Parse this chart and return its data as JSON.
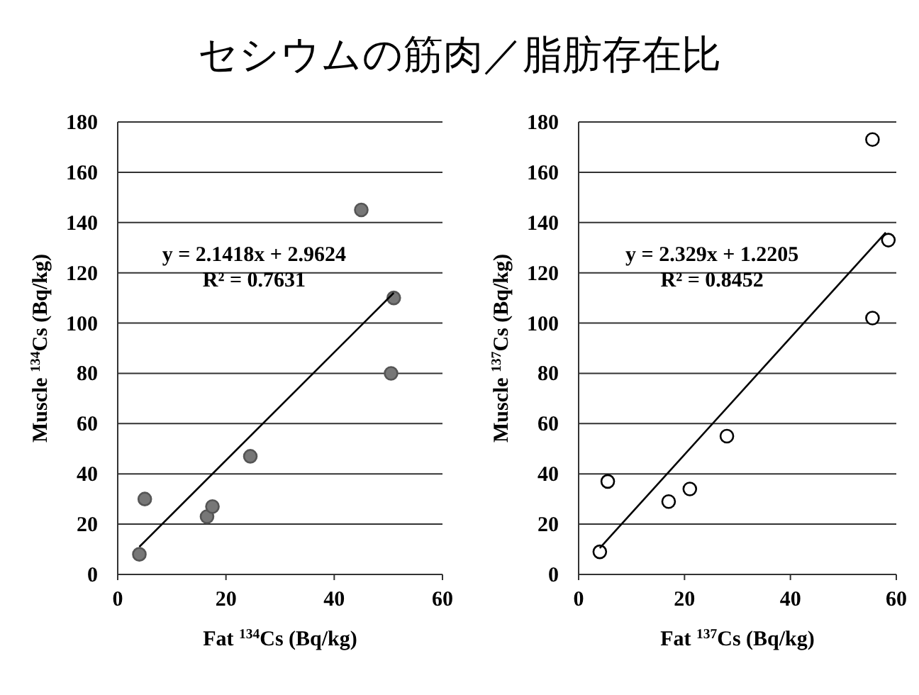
{
  "chart_data": [
    {
      "type": "scatter",
      "title": "セシウムの筋肉／脂肪存在比",
      "xlabel": "Fat $^{134}$Cs (Bq/kg)",
      "ylabel": "Muscle $^{134}$Cs (Bq/kg)",
      "xlim": [
        0,
        60
      ],
      "xticks": [
        0,
        20,
        40,
        60
      ],
      "ylim": [
        0,
        180
      ],
      "yticks": [
        0,
        20,
        40,
        60,
        80,
        100,
        120,
        140,
        160,
        180
      ],
      "grid": "y",
      "annotations": [
        "y = 2.1418x + 2.9624",
        "R² = 0.7631"
      ],
      "series": [
        {
          "marker": "circle",
          "color": "#777777",
          "x": [
            4,
            5,
            16.5,
            17.5,
            24.5,
            45,
            50.5,
            51
          ],
          "values": [
            8,
            30,
            23,
            27,
            47,
            145,
            80,
            110
          ]
        },
        {
          "type": "line",
          "color": "#000000",
          "x": [
            4,
            51
          ],
          "values": [
            11,
            112
          ]
        }
      ]
    },
    {
      "type": "scatter",
      "xlabel": "Fat $^{137}$Cs (Bq/kg)",
      "ylabel": "Muscle $^{137}$Cs (Bq/kg)",
      "xlim": [
        0,
        60
      ],
      "xticks": [
        0,
        20,
        40,
        60
      ],
      "ylim": [
        0,
        180
      ],
      "yticks": [
        0,
        20,
        40,
        60,
        80,
        100,
        120,
        140,
        160,
        180
      ],
      "grid": "y",
      "annotations": [
        "y = 2.329x + 1.2205",
        "R² = 0.8452"
      ],
      "series": [
        {
          "marker": "circle",
          "color": "#ffffff",
          "x": [
            4,
            5.5,
            17,
            21,
            28,
            55.5,
            55.5,
            58.5
          ],
          "values": [
            9,
            37,
            29,
            34,
            55,
            173,
            102,
            133
          ]
        },
        {
          "type": "line",
          "color": "#000000",
          "x": [
            4,
            58
          ],
          "values": [
            10.5,
            136
          ]
        }
      ]
    }
  ]
}
